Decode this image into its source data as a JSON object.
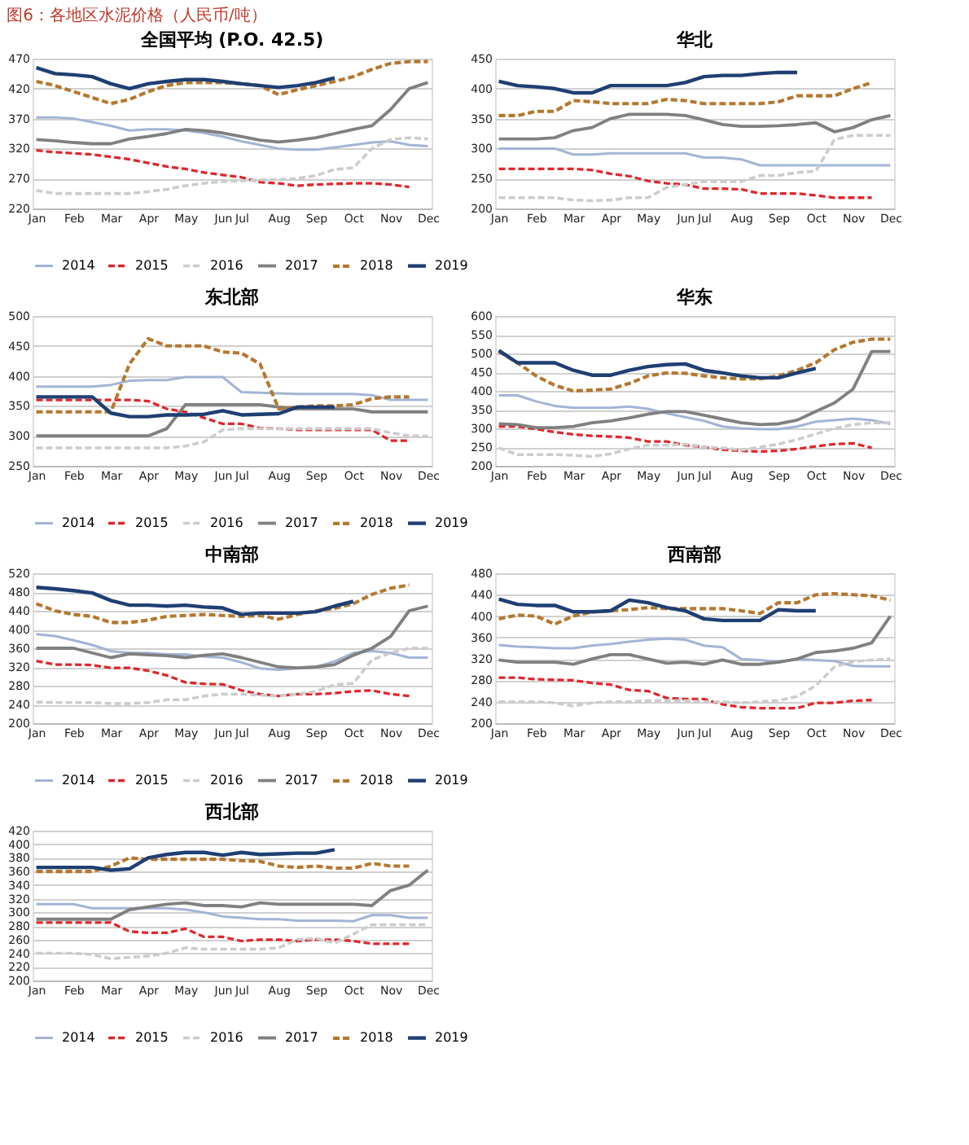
{
  "chart_data": [
    {
      "type": "line",
      "title": "全国平均 (P.O. 42.5)",
      "annotations": [
        "图6：各地区水泥价格（人民币/吨）"
      ],
      "grid": "y",
      "legend": "bottom",
      "categories": [
        "Jan",
        null,
        "Feb",
        null,
        "Mar",
        null,
        "Apr",
        null,
        "May",
        null,
        "Jun",
        "Jul",
        null,
        "Aug",
        null,
        "Sep",
        null,
        "Oct",
        null,
        "Nov",
        null,
        "Dec"
      ],
      "ylim": [
        220,
        470
      ],
      "yticks": [
        220,
        270,
        320,
        370,
        420,
        470
      ],
      "series": [
        {
          "name": "2014",
          "color": "#a3b4d6",
          "line_style": "solid",
          "values": [
            372,
            372,
            370,
            364,
            358,
            350,
            352,
            352,
            350,
            346,
            340,
            332,
            326,
            320,
            318,
            318,
            322,
            326,
            330,
            332,
            326,
            324
          ]
        },
        {
          "name": "2015",
          "color": "#e0262c",
          "line_style": "dashed",
          "values": [
            317,
            314,
            312,
            310,
            306,
            302,
            296,
            290,
            286,
            280,
            276,
            272,
            264,
            262,
            258,
            260,
            261,
            262,
            262,
            260,
            256,
            null
          ]
        },
        {
          "name": "2016",
          "color": "#cccccc",
          "line_style": "dashed",
          "values": [
            250,
            245,
            245,
            245,
            245,
            245,
            248,
            252,
            258,
            262,
            265,
            266,
            268,
            268,
            270,
            275,
            285,
            288,
            320,
            335,
            338,
            336
          ]
        },
        {
          "name": "2017",
          "color": "#808080",
          "line_style": "solid",
          "values": [
            335,
            333,
            330,
            328,
            328,
            336,
            340,
            345,
            352,
            350,
            346,
            340,
            334,
            331,
            334,
            338,
            345,
            352,
            358,
            385,
            420,
            430
          ]
        },
        {
          "name": "2018",
          "color": "#b5782f",
          "line_style": "dashed",
          "values": [
            432,
            425,
            415,
            405,
            395,
            402,
            415,
            425,
            430,
            430,
            430,
            428,
            425,
            410,
            418,
            425,
            432,
            440,
            452,
            462,
            465,
            465
          ]
        },
        {
          "name": "2019",
          "color": "#1f3f73",
          "line_style": "solid",
          "values": [
            455,
            445,
            443,
            440,
            428,
            420,
            428,
            432,
            435,
            435,
            432,
            428,
            425,
            422,
            425,
            430,
            438,
            null,
            null,
            null,
            null,
            null
          ]
        }
      ]
    },
    {
      "type": "line",
      "title": "华北",
      "grid": "y",
      "legend": "bottom",
      "categories": [
        "Jan",
        null,
        "Feb",
        null,
        "Mar",
        null,
        "Apr",
        null,
        "May",
        null,
        "Jun",
        "Jul",
        null,
        "Aug",
        null,
        "Sep",
        null,
        "Oct",
        null,
        "Nov",
        null,
        "Dec"
      ],
      "ylim": [
        200,
        450
      ],
      "yticks": [
        200,
        250,
        300,
        350,
        400,
        450
      ],
      "series": [
        {
          "name": "2014",
          "color": "#a3b4d6",
          "line_style": "solid",
          "values": [
            300,
            300,
            300,
            300,
            290,
            290,
            292,
            292,
            292,
            292,
            292,
            285,
            285,
            282,
            272,
            272,
            272,
            272,
            272,
            272,
            272,
            272
          ]
        },
        {
          "name": "2015",
          "color": "#e0262c",
          "line_style": "dashed",
          "values": [
            266,
            266,
            266,
            266,
            266,
            264,
            258,
            254,
            246,
            242,
            240,
            233,
            233,
            232,
            225,
            225,
            225,
            222,
            218,
            218,
            218,
            null
          ]
        },
        {
          "name": "2016",
          "color": "#cccccc",
          "line_style": "dashed",
          "values": [
            218,
            218,
            218,
            218,
            214,
            213,
            214,
            218,
            218,
            235,
            240,
            245,
            245,
            245,
            255,
            255,
            260,
            262,
            315,
            322,
            322,
            322
          ]
        },
        {
          "name": "2017",
          "color": "#808080",
          "line_style": "solid",
          "values": [
            316,
            316,
            316,
            318,
            330,
            335,
            350,
            357,
            357,
            357,
            355,
            348,
            340,
            337,
            337,
            338,
            340,
            343,
            328,
            335,
            348,
            355
          ]
        },
        {
          "name": "2018",
          "color": "#b5782f",
          "line_style": "dashed",
          "values": [
            355,
            355,
            362,
            362,
            380,
            378,
            375,
            375,
            375,
            382,
            380,
            375,
            375,
            375,
            375,
            378,
            388,
            388,
            388,
            400,
            410,
            null
          ]
        },
        {
          "name": "2019",
          "color": "#1f3f73",
          "line_style": "solid",
          "values": [
            412,
            405,
            403,
            400,
            393,
            393,
            405,
            405,
            405,
            405,
            410,
            420,
            422,
            422,
            425,
            427,
            427,
            null,
            null,
            null,
            null,
            null
          ]
        }
      ]
    },
    {
      "type": "line",
      "title": "东北部",
      "grid": "y",
      "legend": "bottom",
      "categories": [
        "Jan",
        null,
        "Feb",
        null,
        "Mar",
        null,
        "Apr",
        null,
        "May",
        null,
        "Jun",
        "Jul",
        null,
        "Aug",
        null,
        "Sep",
        null,
        "Oct",
        null,
        "Nov",
        null,
        "Dec"
      ],
      "ylim": [
        250,
        500
      ],
      "yticks": [
        250,
        300,
        350,
        400,
        450,
        500
      ],
      "series": [
        {
          "name": "2014",
          "color": "#a3b4d6",
          "line_style": "solid",
          "values": [
            382,
            382,
            382,
            382,
            385,
            392,
            393,
            393,
            398,
            398,
            398,
            373,
            372,
            371,
            370,
            370,
            370,
            370,
            368,
            360,
            360,
            360
          ]
        },
        {
          "name": "2015",
          "color": "#e0262c",
          "line_style": "dashed",
          "values": [
            360,
            360,
            360,
            360,
            360,
            360,
            358,
            345,
            340,
            330,
            320,
            320,
            313,
            312,
            310,
            310,
            310,
            310,
            310,
            292,
            292,
            null
          ]
        },
        {
          "name": "2016",
          "color": "#cccccc",
          "line_style": "dashed",
          "values": [
            280,
            280,
            280,
            280,
            280,
            280,
            280,
            280,
            283,
            290,
            310,
            312,
            312,
            312,
            312,
            312,
            312,
            312,
            312,
            305,
            300,
            300
          ]
        },
        {
          "name": "2017",
          "color": "#808080",
          "line_style": "solid",
          "values": [
            300,
            300,
            300,
            300,
            300,
            300,
            300,
            312,
            352,
            352,
            352,
            352,
            352,
            348,
            345,
            345,
            345,
            345,
            340,
            340,
            340,
            340
          ]
        },
        {
          "name": "2018",
          "color": "#b5782f",
          "line_style": "dashed",
          "values": [
            340,
            340,
            340,
            340,
            340,
            420,
            462,
            450,
            450,
            450,
            440,
            438,
            420,
            345,
            348,
            350,
            350,
            352,
            362,
            365,
            365,
            null
          ]
        },
        {
          "name": "2019",
          "color": "#1f3f73",
          "line_style": "solid",
          "values": [
            365,
            365,
            365,
            365,
            338,
            332,
            332,
            335,
            335,
            336,
            342,
            335,
            336,
            337,
            348,
            348,
            348,
            null,
            null,
            null,
            null,
            null
          ]
        }
      ]
    },
    {
      "type": "line",
      "title": "华东",
      "grid": "y",
      "legend": "bottom",
      "categories": [
        "Jan",
        null,
        "Feb",
        null,
        "Mar",
        null,
        "Apr",
        null,
        "May",
        null,
        "Jun",
        "Jul",
        null,
        "Aug",
        null,
        "Sep",
        null,
        "Oct",
        null,
        "Nov",
        null,
        "Dec"
      ],
      "ylim": [
        200,
        600
      ],
      "yticks": [
        200,
        250,
        300,
        350,
        400,
        450,
        500,
        550,
        600
      ],
      "series": [
        {
          "name": "2014",
          "color": "#a3b4d6",
          "line_style": "solid",
          "values": [
            388,
            388,
            372,
            360,
            355,
            355,
            355,
            358,
            352,
            340,
            330,
            320,
            305,
            300,
            298,
            298,
            305,
            318,
            322,
            326,
            322,
            312
          ]
        },
        {
          "name": "2015",
          "color": "#e0262c",
          "line_style": "dashed",
          "values": [
            305,
            305,
            298,
            290,
            284,
            280,
            278,
            275,
            265,
            265,
            255,
            250,
            243,
            240,
            238,
            240,
            245,
            252,
            258,
            260,
            248,
            null
          ]
        },
        {
          "name": "2016",
          "color": "#cccccc",
          "line_style": "dashed",
          "values": [
            248,
            230,
            230,
            230,
            228,
            225,
            232,
            245,
            255,
            255,
            258,
            250,
            248,
            242,
            250,
            258,
            270,
            285,
            300,
            310,
            315,
            315
          ]
        },
        {
          "name": "2017",
          "color": "#808080",
          "line_style": "solid",
          "values": [
            312,
            310,
            302,
            302,
            305,
            315,
            320,
            328,
            338,
            345,
            345,
            335,
            325,
            315,
            310,
            312,
            322,
            345,
            368,
            405,
            505,
            505
          ]
        },
        {
          "name": "2018",
          "color": "#b5782f",
          "line_style": "dashed",
          "values": [
            505,
            475,
            440,
            415,
            400,
            402,
            405,
            420,
            440,
            448,
            447,
            440,
            435,
            432,
            432,
            440,
            455,
            475,
            510,
            530,
            538,
            538
          ]
        },
        {
          "name": "2019",
          "color": "#1f3f73",
          "line_style": "solid",
          "values": [
            508,
            475,
            475,
            475,
            455,
            442,
            442,
            455,
            465,
            470,
            472,
            455,
            448,
            440,
            435,
            435,
            448,
            460,
            null,
            null,
            null,
            null
          ]
        }
      ]
    },
    {
      "type": "line",
      "title": "中南部",
      "grid": "y",
      "legend": "bottom",
      "categories": [
        "Jan",
        null,
        "Feb",
        null,
        "Mar",
        null,
        "Apr",
        null,
        "May",
        null,
        "Jun",
        "Jul",
        null,
        "Aug",
        null,
        "Sep",
        null,
        "Oct",
        null,
        "Nov",
        null,
        "Dec"
      ],
      "ylim": [
        200,
        520
      ],
      "yticks": [
        200,
        240,
        280,
        320,
        360,
        400,
        440,
        480,
        520
      ],
      "series": [
        {
          "name": "2014",
          "color": "#a3b4d6",
          "line_style": "solid",
          "values": [
            390,
            386,
            377,
            367,
            354,
            350,
            350,
            347,
            347,
            342,
            340,
            330,
            317,
            314,
            317,
            320,
            332,
            350,
            354,
            350,
            340,
            340
          ]
        },
        {
          "name": "2015",
          "color": "#e0262c",
          "line_style": "dashed",
          "values": [
            333,
            325,
            325,
            324,
            318,
            318,
            312,
            302,
            287,
            284,
            283,
            270,
            262,
            258,
            262,
            262,
            264,
            268,
            270,
            262,
            258,
            null
          ]
        },
        {
          "name": "2016",
          "color": "#cccccc",
          "line_style": "dashed",
          "values": [
            245,
            244,
            244,
            244,
            242,
            242,
            244,
            250,
            250,
            258,
            262,
            262,
            260,
            258,
            262,
            268,
            282,
            285,
            335,
            350,
            360,
            360
          ]
        },
        {
          "name": "2017",
          "color": "#808080",
          "line_style": "solid",
          "values": [
            360,
            360,
            360,
            350,
            340,
            348,
            346,
            344,
            340,
            345,
            348,
            340,
            330,
            320,
            318,
            320,
            325,
            345,
            360,
            385,
            440,
            450
          ]
        },
        {
          "name": "2018",
          "color": "#b5782f",
          "line_style": "dashed",
          "values": [
            455,
            440,
            432,
            428,
            415,
            415,
            420,
            428,
            430,
            432,
            430,
            428,
            430,
            422,
            432,
            440,
            445,
            455,
            475,
            488,
            495,
            null
          ]
        },
        {
          "name": "2019",
          "color": "#1f3f73",
          "line_style": "solid",
          "values": [
            490,
            487,
            483,
            478,
            462,
            452,
            452,
            450,
            452,
            448,
            446,
            432,
            435,
            435,
            435,
            438,
            450,
            460,
            null,
            null,
            null,
            null
          ]
        }
      ]
    },
    {
      "type": "line",
      "title": "西南部",
      "grid": "y",
      "legend": "bottom",
      "categories": [
        "Jan",
        null,
        "Feb",
        null,
        "Mar",
        null,
        "Apr",
        null,
        "May",
        null,
        "Jun",
        "Jul",
        null,
        "Aug",
        null,
        "Sep",
        null,
        "Oct",
        null,
        "Nov",
        null,
        "Dec"
      ],
      "ylim": [
        200,
        480
      ],
      "yticks": [
        200,
        240,
        280,
        320,
        360,
        400,
        440,
        480
      ],
      "series": [
        {
          "name": "2014",
          "color": "#a3b4d6",
          "line_style": "solid",
          "values": [
            346,
            343,
            342,
            340,
            340,
            345,
            348,
            352,
            356,
            358,
            356,
            345,
            342,
            320,
            318,
            314,
            320,
            318,
            316,
            307,
            306,
            306
          ]
        },
        {
          "name": "2015",
          "color": "#e0262c",
          "line_style": "dashed",
          "values": [
            285,
            285,
            282,
            281,
            280,
            275,
            272,
            262,
            260,
            247,
            245,
            245,
            235,
            230,
            228,
            228,
            228,
            238,
            238,
            242,
            243,
            null
          ]
        },
        {
          "name": "2016",
          "color": "#cccccc",
          "line_style": "dashed",
          "values": [
            240,
            240,
            240,
            238,
            232,
            238,
            240,
            240,
            242,
            242,
            242,
            240,
            240,
            238,
            240,
            242,
            250,
            270,
            305,
            315,
            318,
            320
          ]
        },
        {
          "name": "2017",
          "color": "#808080",
          "line_style": "solid",
          "values": [
            318,
            314,
            314,
            314,
            310,
            320,
            328,
            328,
            320,
            312,
            314,
            310,
            318,
            310,
            310,
            314,
            320,
            332,
            335,
            340,
            350,
            400
          ]
        },
        {
          "name": "2018",
          "color": "#b5782f",
          "line_style": "dashed",
          "values": [
            395,
            402,
            400,
            385,
            400,
            408,
            410,
            412,
            416,
            414,
            414,
            414,
            414,
            410,
            405,
            425,
            425,
            440,
            442,
            440,
            438,
            430
          ]
        },
        {
          "name": "2019",
          "color": "#1f3f73",
          "line_style": "solid",
          "values": [
            432,
            422,
            420,
            420,
            408,
            408,
            410,
            430,
            425,
            416,
            410,
            395,
            392,
            392,
            392,
            412,
            410,
            410,
            null,
            null,
            null,
            null
          ]
        }
      ]
    },
    {
      "type": "line",
      "title": "西北部",
      "grid": "y",
      "legend": "bottom",
      "categories": [
        "Jan",
        null,
        "Feb",
        null,
        "Mar",
        null,
        "Apr",
        null,
        "May",
        null,
        "Jun",
        "Jul",
        null,
        "Aug",
        null,
        "Sep",
        null,
        "Oct",
        null,
        "Nov",
        null,
        "Dec"
      ],
      "ylim": [
        200,
        420
      ],
      "yticks": [
        200,
        220,
        240,
        260,
        280,
        300,
        320,
        340,
        360,
        380,
        400,
        420
      ],
      "series": [
        {
          "name": "2014",
          "color": "#a3b4d6",
          "line_style": "solid",
          "values": [
            312,
            312,
            312,
            306,
            306,
            306,
            306,
            306,
            304,
            300,
            294,
            292,
            290,
            290,
            288,
            288,
            288,
            287,
            296,
            296,
            292,
            292
          ]
        },
        {
          "name": "2015",
          "color": "#e0262c",
          "line_style": "dashed",
          "values": [
            285,
            285,
            285,
            285,
            285,
            272,
            270,
            270,
            276,
            264,
            264,
            258,
            260,
            260,
            258,
            260,
            260,
            258,
            254,
            254,
            254,
            null
          ]
        },
        {
          "name": "2016",
          "color": "#cccccc",
          "line_style": "dashed",
          "values": [
            240,
            240,
            240,
            238,
            232,
            234,
            236,
            240,
            248,
            246,
            246,
            246,
            246,
            248,
            260,
            262,
            255,
            268,
            282,
            282,
            282,
            282
          ]
        },
        {
          "name": "2017",
          "color": "#808080",
          "line_style": "solid",
          "values": [
            290,
            290,
            290,
            290,
            290,
            304,
            308,
            312,
            314,
            310,
            310,
            308,
            314,
            312,
            312,
            312,
            312,
            312,
            310,
            332,
            340,
            362
          ]
        },
        {
          "name": "2018",
          "color": "#b5782f",
          "line_style": "dashed",
          "values": [
            360,
            360,
            360,
            360,
            368,
            380,
            378,
            378,
            378,
            378,
            378,
            376,
            375,
            368,
            366,
            368,
            365,
            365,
            372,
            368,
            368,
            null
          ]
        },
        {
          "name": "2019",
          "color": "#1f3f73",
          "line_style": "solid",
          "values": [
            366,
            366,
            366,
            366,
            362,
            364,
            380,
            385,
            388,
            388,
            384,
            388,
            385,
            386,
            387,
            387,
            392,
            null,
            null,
            null,
            null,
            null
          ]
        }
      ]
    }
  ]
}
